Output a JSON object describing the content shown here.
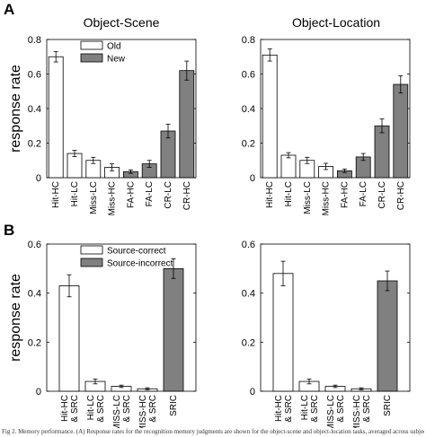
{
  "figure": {
    "caption": "Fig 2. Memory performance. (A) Response rates for the recognition memory judgments are shown for the object-scene and object-location tasks, averaged across subjects."
  },
  "colors": {
    "open_bar": "#ffffff",
    "filled_bar": "#808080",
    "outline": "#000000"
  },
  "chart_data": [
    {
      "type": "bar",
      "panel_label": "A",
      "title": "Object-Scene",
      "ylabel": "response rate",
      "ylim": [
        0,
        0.8
      ],
      "yticks": [
        "0",
        "0.2",
        "0.4",
        "0.6",
        "0.8"
      ],
      "categories": [
        "Hit-HC",
        "Hit-LC",
        "Miss-LC",
        "Miss-HC",
        "FA-HC",
        "FA-LC",
        "CR-LC",
        "CR-HC"
      ],
      "values": [
        0.7,
        0.14,
        0.1,
        0.06,
        0.035,
        0.08,
        0.27,
        0.62
      ],
      "errors": [
        0.03,
        0.018,
        0.018,
        0.02,
        0.01,
        0.02,
        0.04,
        0.055
      ],
      "bar_fill": [
        "open",
        "open",
        "open",
        "open",
        "filled",
        "filled",
        "filled",
        "filled"
      ],
      "legend": {
        "position": "top-left",
        "entries": [
          {
            "label": "Old",
            "fill": "open"
          },
          {
            "label": "New",
            "fill": "filled"
          }
        ]
      }
    },
    {
      "type": "bar",
      "title": "Object-Location",
      "ylim": [
        0,
        0.8
      ],
      "yticks": [
        "0",
        "0.2",
        "0.4",
        "0.6",
        "0.8"
      ],
      "categories": [
        "Hit-HC",
        "Hit-LC",
        "Miss-LC",
        "Miss-HC",
        "FA-HC",
        "FA-LC",
        "CR-LC",
        "CR-HC"
      ],
      "values": [
        0.71,
        0.13,
        0.1,
        0.065,
        0.04,
        0.12,
        0.3,
        0.54
      ],
      "errors": [
        0.035,
        0.015,
        0.018,
        0.018,
        0.01,
        0.02,
        0.04,
        0.05
      ],
      "bar_fill": [
        "open",
        "open",
        "open",
        "open",
        "filled",
        "filled",
        "filled",
        "filled"
      ]
    },
    {
      "type": "bar",
      "panel_label": "B",
      "ylabel": "response rate",
      "ylim": [
        0,
        0.6
      ],
      "yticks": [
        "0",
        "0.2",
        "0.4",
        "0.6"
      ],
      "categories": [
        "Hit-HC & SRC",
        "Hit-LC & SRC",
        "MISS-LC & SRC",
        "MISS-HC & SRC",
        "SRIC"
      ],
      "values": [
        0.43,
        0.04,
        0.02,
        0.01,
        0.5
      ],
      "errors": [
        0.045,
        0.01,
        0.005,
        0.004,
        0.04
      ],
      "bar_fill": [
        "open",
        "open",
        "open",
        "open",
        "filled"
      ],
      "legend": {
        "position": "top-left",
        "entries": [
          {
            "label": "Source-correct",
            "fill": "open"
          },
          {
            "label": "Source-incorrect",
            "fill": "filled"
          }
        ]
      }
    },
    {
      "type": "bar",
      "ylim": [
        0,
        0.6
      ],
      "yticks": [
        "0",
        "0.2",
        "0.4",
        "0.6"
      ],
      "categories": [
        "Hit-HC & SRC",
        "Hit-LC & SRC",
        "MISS-LC & SRC",
        "MISS-HC & SRC",
        "SRIC"
      ],
      "values": [
        0.48,
        0.04,
        0.02,
        0.01,
        0.45
      ],
      "errors": [
        0.05,
        0.01,
        0.005,
        0.004,
        0.04
      ],
      "bar_fill": [
        "open",
        "open",
        "open",
        "open",
        "filled"
      ]
    }
  ]
}
